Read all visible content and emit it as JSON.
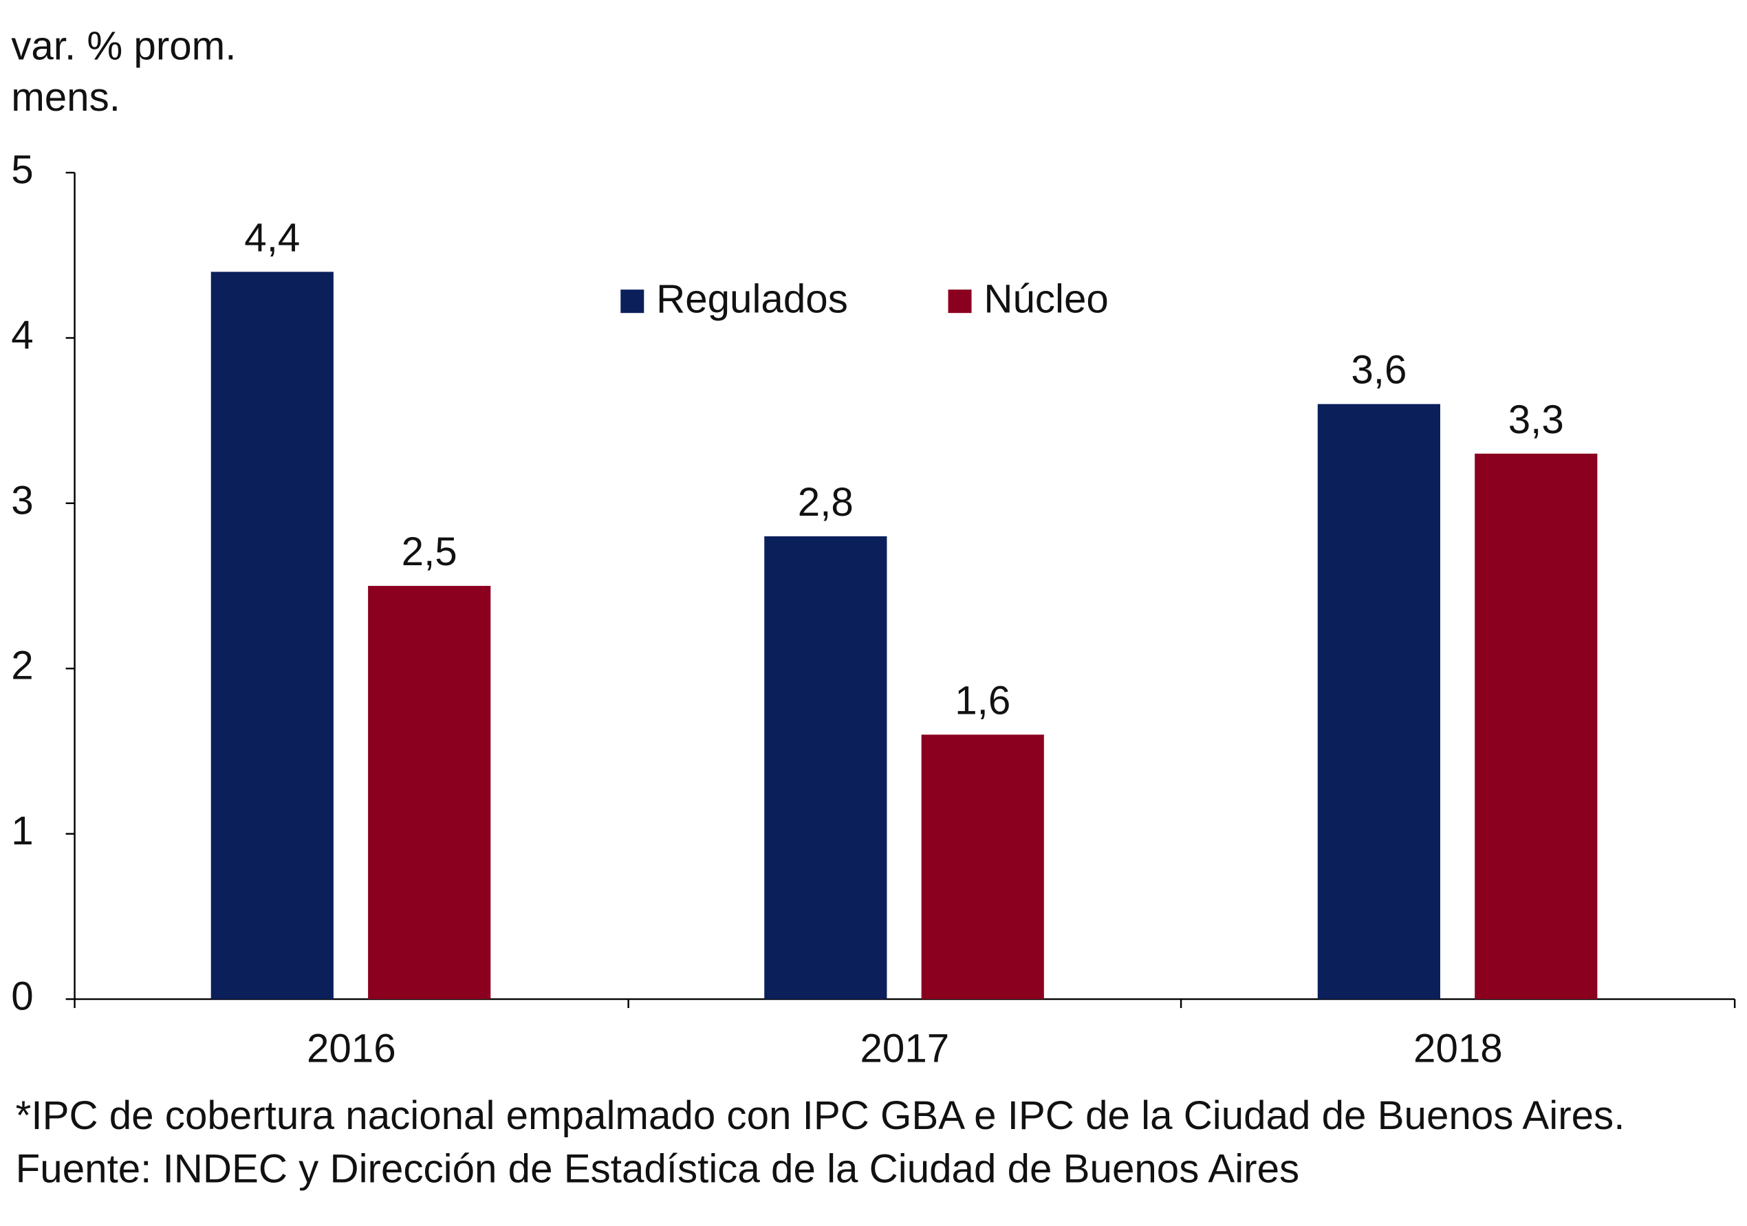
{
  "chart_data": {
    "type": "bar",
    "ylabel": [
      "var. % prom.",
      "mens."
    ],
    "categories": [
      "2016",
      "2017",
      "2018"
    ],
    "series": [
      {
        "name": "Regulados",
        "color": "#0b1f5b",
        "values": [
          4.4,
          2.8,
          3.6
        ],
        "value_labels": [
          "4,4",
          "2,8",
          "3,6"
        ]
      },
      {
        "name": "Núcleo",
        "color": "#8b001e",
        "values": [
          2.5,
          1.6,
          3.3
        ],
        "value_labels": [
          "2,5",
          "1,6",
          "3,3"
        ]
      }
    ],
    "ylim": [
      0,
      5
    ],
    "yticks": [
      0,
      1,
      2,
      3,
      4,
      5
    ],
    "grid": false,
    "legend": "top",
    "notes": [
      "*IPC de cobertura nacional empalmado con IPC GBA e IPC de la Ciudad de Buenos Aires.",
      "Fuente: INDEC y Dirección de Estadística de la Ciudad de Buenos Aires"
    ]
  }
}
